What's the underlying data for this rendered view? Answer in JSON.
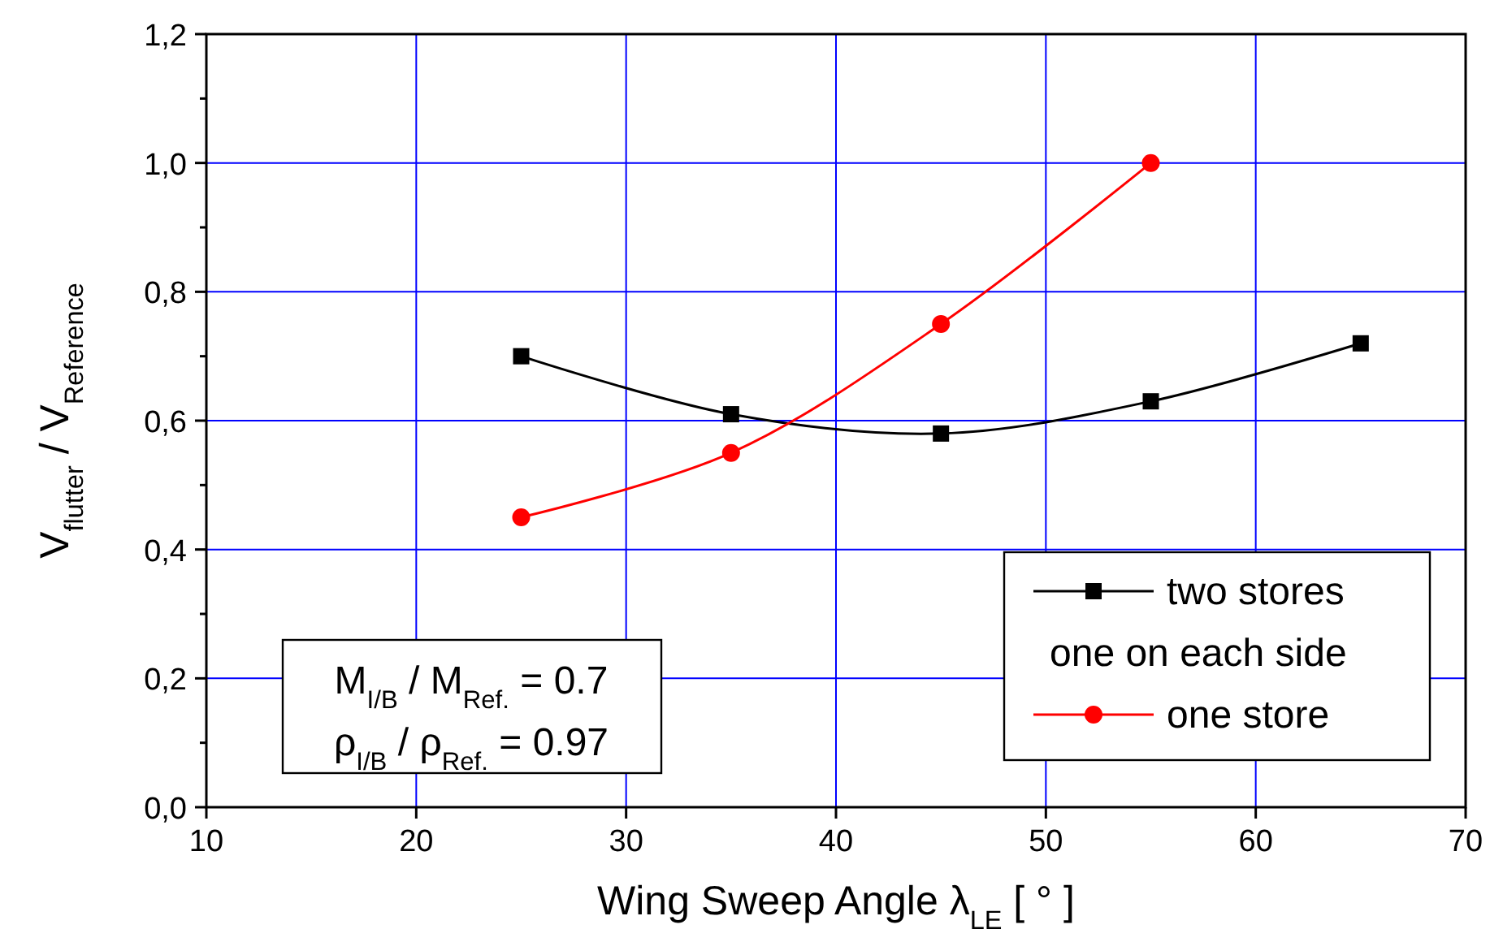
{
  "chart_data": {
    "type": "line",
    "xlabel": "Wing Sweep Angle λ$_{LE}$ [ ° ]",
    "ylabel": "V$_{flutter}$ / V$_{Reference}$",
    "xlim": [
      10,
      70
    ],
    "xticks": [
      10,
      20,
      30,
      40,
      50,
      60,
      70
    ],
    "ylim": [
      0,
      1.2
    ],
    "yticks": [
      {
        "value": 0,
        "label": "0,0"
      },
      {
        "value": 0.1,
        "label": null
      },
      {
        "value": 0.2,
        "label": "0,2"
      },
      {
        "value": 0.3,
        "label": null
      },
      {
        "value": 0.4,
        "label": "0,4"
      },
      {
        "value": 0.5,
        "label": null
      },
      {
        "value": 0.6,
        "label": "0,6"
      },
      {
        "value": 0.7,
        "label": null
      },
      {
        "value": 0.8,
        "label": "0,8"
      },
      {
        "value": 0.9,
        "label": null
      },
      {
        "value": 1.0,
        "label": "1,0"
      },
      {
        "value": 1.1,
        "label": null
      },
      {
        "value": 1.2,
        "label": "1,2"
      }
    ],
    "grid": true,
    "legend": "bottom right",
    "line_style": "solid",
    "series": [
      {
        "name": "two stores one on each side",
        "color": "#000000",
        "marker": "square",
        "x": [
          25,
          35,
          45,
          55,
          65
        ],
        "values": [
          0.7,
          0.61,
          0.58,
          0.63,
          0.72
        ]
      },
      {
        "name": "one store",
        "color": "#ff0000",
        "marker": "circle",
        "x": [
          25,
          35,
          45,
          55
        ],
        "values": [
          0.45,
          0.55,
          0.75,
          1.0
        ]
      }
    ],
    "annotations": [
      "M$_{I/B}$ / M$_{Ref.}$ = 0.7",
      "ρ$_{I/B}$ / ρ$_{Ref.}$ = 0.97"
    ]
  }
}
